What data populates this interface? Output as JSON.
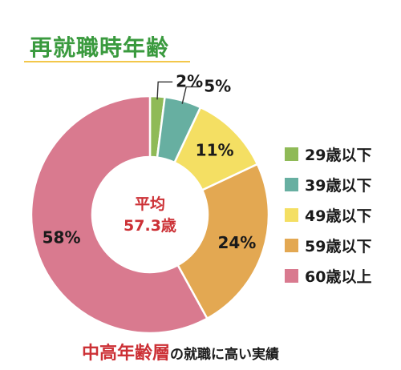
{
  "title": "再就職時年齢",
  "chart_data": {
    "type": "pie",
    "title": "再就職時年齢",
    "center_label": [
      "平均",
      "57.3歳"
    ],
    "categories": [
      "29歳以下",
      "39歳以下",
      "49歳以下",
      "59歳以下",
      "60歳以上"
    ],
    "values": [
      2,
      5,
      11,
      24,
      58
    ],
    "value_labels": [
      "2%",
      "5%",
      "11%",
      "24%",
      "58%"
    ],
    "colors": [
      "#8fba57",
      "#67afa1",
      "#f4df63",
      "#e3a852",
      "#d97a8f"
    ],
    "legend_position": "right"
  },
  "caption": {
    "highlight": "中高年齢層",
    "rest": "の就職に高い実績"
  }
}
